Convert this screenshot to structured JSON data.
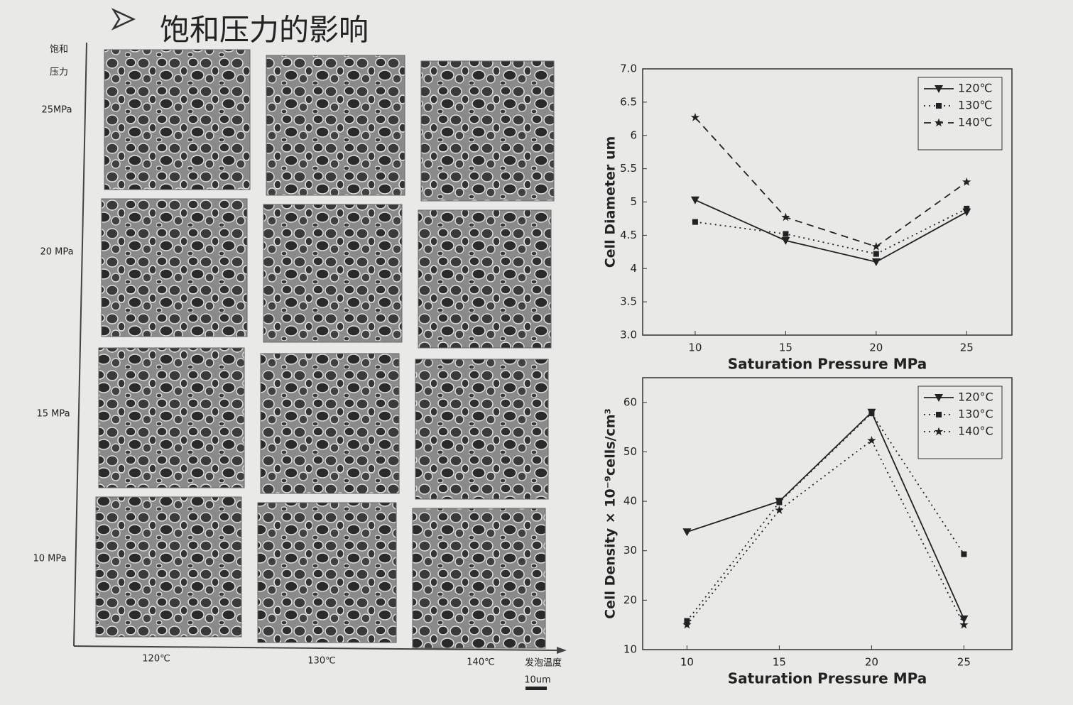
{
  "slide": {
    "title": "饱和压力的影响",
    "y_axis_label": [
      "饱和",
      "压力"
    ],
    "rows": [
      "25MPa",
      "20 MPa",
      "15 MPa",
      "10 MPa"
    ],
    "columns": [
      "120℃",
      "130℃",
      "140℃"
    ],
    "x_axis_label": "发泡温度",
    "scale_bar": "10um"
  },
  "chart_data": [
    {
      "type": "line",
      "x_label": "Saturation Pressure MPa",
      "y_label": "Cell Diameter  um",
      "x": [
        10,
        15,
        20,
        25
      ],
      "xlim": [
        7.1,
        27.5
      ],
      "xticks": [
        10,
        15,
        20,
        25
      ],
      "ylim": [
        3,
        7
      ],
      "yticks": [
        {
          "value": 3,
          "label": "3.0"
        },
        3.5,
        4,
        4.5,
        5,
        5.5,
        6,
        6.5,
        {
          "value": 7,
          "label": "7.0"
        }
      ],
      "legend": "upper right",
      "series": [
        {
          "name": "120℃",
          "color": "#222",
          "dash": "solid",
          "marker": "triangle",
          "values": [
            5.03,
            4.42,
            4.1,
            4.85
          ]
        },
        {
          "name": "130℃",
          "color": "#222",
          "dash": "dotted",
          "marker": "square",
          "values": [
            4.7,
            4.52,
            4.22,
            4.9
          ]
        },
        {
          "name": "140℃",
          "color": "#222",
          "dash": "dashed",
          "marker": "star",
          "values": [
            6.27,
            4.77,
            4.33,
            5.3
          ]
        }
      ]
    },
    {
      "type": "line",
      "x_label": "Saturation Pressure MPa",
      "y_label": "Cell Density × 10⁻⁹cells/cm³",
      "x": [
        10,
        15,
        20,
        25
      ],
      "xlim": [
        7.6,
        27.6
      ],
      "xticks": [
        10,
        15,
        20,
        25
      ],
      "ylim": [
        10,
        65
      ],
      "yticks": [
        10,
        20,
        30,
        40,
        50,
        60
      ],
      "legend": "upper right",
      "series": [
        {
          "name": "120°C",
          "color": "#222",
          "dash": "solid",
          "marker": "triangle",
          "values": [
            33.8,
            40,
            58,
            16.2
          ]
        },
        {
          "name": "130°C",
          "color": "#222",
          "dash": "dotted",
          "marker": "square",
          "values": [
            15.8,
            39.8,
            57.8,
            29.3
          ]
        },
        {
          "name": "140°C",
          "color": "#222",
          "dash": "dotted",
          "marker": "star",
          "values": [
            15,
            38.2,
            52.3,
            15
          ]
        }
      ]
    }
  ]
}
